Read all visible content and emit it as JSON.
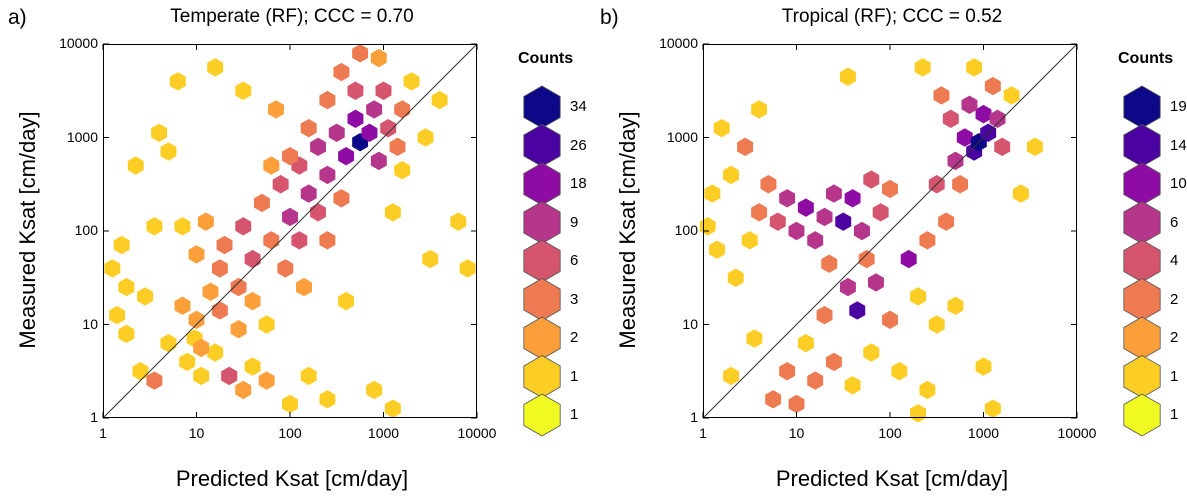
{
  "chart_data": [
    {
      "type": "hexbin",
      "panel_label": "a)",
      "title": "Temperate (RF); CCC = 0.70",
      "xlabel": "Predicted Ksat [cm/day]",
      "ylabel": "Measured Ksat [cm/day]",
      "x_scale": "log",
      "y_scale": "log",
      "xlim": [
        1,
        10000
      ],
      "ylim": [
        1,
        10000
      ],
      "x_ticks": [
        "1",
        "10",
        "100",
        "1000",
        "10000"
      ],
      "y_ticks": [
        "1",
        "10",
        "100",
        "1000",
        "10000"
      ],
      "reference_line": "1:1",
      "legend": {
        "title": "Counts",
        "labels": [
          "34",
          "26",
          "18",
          "9",
          "6",
          "3",
          "2",
          "1",
          "1"
        ],
        "colors": [
          "#0d0887",
          "#4a02a0",
          "#8e0ca4",
          "#b5368a",
          "#d5546e",
          "#ee7a51",
          "#fb9f3a",
          "#fcce25",
          "#f0f921"
        ]
      },
      "hexbins": [
        {
          "x": 0.9,
          "y": 0.6,
          "c": 1
        },
        {
          "x": 0.98,
          "y": 0.85,
          "c": 1
        },
        {
          "x": 1.2,
          "y": 0.7,
          "c": 1
        },
        {
          "x": 1.35,
          "y": 0.45,
          "c": 2
        },
        {
          "x": 1.5,
          "y": 0.3,
          "c": 2
        },
        {
          "x": 1.6,
          "y": 0.55,
          "c": 1
        },
        {
          "x": 1.75,
          "y": 0.4,
          "c": 2
        },
        {
          "x": 2.0,
          "y": 0.15,
          "c": 1
        },
        {
          "x": 2.2,
          "y": 0.45,
          "c": 1
        },
        {
          "x": 2.4,
          "y": 0.2,
          "c": 1
        },
        {
          "x": 2.9,
          "y": 0.3,
          "c": 1
        },
        {
          "x": 3.1,
          "y": 0.1,
          "c": 1
        },
        {
          "x": 2.6,
          "y": 1.25,
          "c": 1
        },
        {
          "x": 3.5,
          "y": 1.7,
          "c": 1
        },
        {
          "x": 3.2,
          "y": 2.65,
          "c": 1
        },
        {
          "x": 3.8,
          "y": 2.1,
          "c": 1
        },
        {
          "x": 3.9,
          "y": 1.6,
          "c": 1
        },
        {
          "x": 3.1,
          "y": 2.2,
          "c": 1
        },
        {
          "x": 0.2,
          "y": 1.85,
          "c": 1
        },
        {
          "x": 0.1,
          "y": 1.6,
          "c": 1
        },
        {
          "x": 0.25,
          "y": 1.4,
          "c": 1
        },
        {
          "x": 0.35,
          "y": 2.7,
          "c": 1
        },
        {
          "x": 0.55,
          "y": 2.05,
          "c": 1
        },
        {
          "x": 0.7,
          "y": 2.85,
          "c": 1
        },
        {
          "x": 0.8,
          "y": 3.6,
          "c": 1
        },
        {
          "x": 1.2,
          "y": 3.75,
          "c": 1
        },
        {
          "x": 1.5,
          "y": 3.5,
          "c": 1
        },
        {
          "x": 0.25,
          "y": 0.9,
          "c": 1
        },
        {
          "x": 0.4,
          "y": 0.5,
          "c": 1
        },
        {
          "x": 0.55,
          "y": 0.4,
          "c": 3
        },
        {
          "x": 0.7,
          "y": 0.8,
          "c": 1
        },
        {
          "x": 0.85,
          "y": 1.2,
          "c": 2
        },
        {
          "x": 1.0,
          "y": 1.05,
          "c": 2
        },
        {
          "x": 1.05,
          "y": 0.45,
          "c": 1
        },
        {
          "x": 1.15,
          "y": 1.35,
          "c": 2
        },
        {
          "x": 1.25,
          "y": 1.6,
          "c": 3
        },
        {
          "x": 1.0,
          "y": 1.75,
          "c": 2
        },
        {
          "x": 0.85,
          "y": 2.05,
          "c": 1
        },
        {
          "x": 1.1,
          "y": 2.1,
          "c": 2
        },
        {
          "x": 1.3,
          "y": 1.85,
          "c": 3
        },
        {
          "x": 1.45,
          "y": 1.4,
          "c": 4
        },
        {
          "x": 1.5,
          "y": 2.05,
          "c": 6
        },
        {
          "x": 1.6,
          "y": 1.7,
          "c": 7
        },
        {
          "x": 1.7,
          "y": 2.3,
          "c": 4
        },
        {
          "x": 1.8,
          "y": 1.9,
          "c": 5
        },
        {
          "x": 1.9,
          "y": 2.5,
          "c": 6
        },
        {
          "x": 2.0,
          "y": 2.15,
          "c": 9
        },
        {
          "x": 2.1,
          "y": 2.7,
          "c": 8
        },
        {
          "x": 2.2,
          "y": 2.4,
          "c": 12
        },
        {
          "x": 2.3,
          "y": 2.9,
          "c": 9
        },
        {
          "x": 2.4,
          "y": 2.6,
          "c": 14
        },
        {
          "x": 2.5,
          "y": 3.05,
          "c": 16
        },
        {
          "x": 2.6,
          "y": 2.8,
          "c": 20
        },
        {
          "x": 2.7,
          "y": 3.2,
          "c": 24
        },
        {
          "x": 2.75,
          "y": 2.95,
          "c": 34
        },
        {
          "x": 2.85,
          "y": 3.05,
          "c": 22
        },
        {
          "x": 2.9,
          "y": 3.3,
          "c": 15
        },
        {
          "x": 2.95,
          "y": 2.75,
          "c": 10
        },
        {
          "x": 3.05,
          "y": 3.1,
          "c": 8
        },
        {
          "x": 3.0,
          "y": 3.5,
          "c": 6
        },
        {
          "x": 3.15,
          "y": 2.9,
          "c": 5
        },
        {
          "x": 3.2,
          "y": 3.3,
          "c": 3
        },
        {
          "x": 2.4,
          "y": 3.4,
          "c": 4
        },
        {
          "x": 2.2,
          "y": 3.1,
          "c": 5
        },
        {
          "x": 2.0,
          "y": 2.8,
          "c": 3
        },
        {
          "x": 1.8,
          "y": 2.7,
          "c": 2
        },
        {
          "x": 2.55,
          "y": 3.7,
          "c": 3
        },
        {
          "x": 2.7,
          "y": 3.5,
          "c": 7
        },
        {
          "x": 2.1,
          "y": 1.9,
          "c": 6
        },
        {
          "x": 2.3,
          "y": 2.2,
          "c": 7
        },
        {
          "x": 1.95,
          "y": 1.6,
          "c": 3
        },
        {
          "x": 2.15,
          "y": 1.4,
          "c": 2
        },
        {
          "x": 2.4,
          "y": 1.9,
          "c": 3
        },
        {
          "x": 2.55,
          "y": 2.35,
          "c": 4
        },
        {
          "x": 1.05,
          "y": 0.75,
          "c": 2
        },
        {
          "x": 1.25,
          "y": 1.15,
          "c": 3
        },
        {
          "x": 1.6,
          "y": 1.25,
          "c": 2
        },
        {
          "x": 1.45,
          "y": 0.95,
          "c": 2
        },
        {
          "x": 1.35,
          "y": 0.45,
          "c": 6
        },
        {
          "x": 1.75,
          "y": 1.0,
          "c": 1
        },
        {
          "x": 2.95,
          "y": 3.85,
          "c": 2
        },
        {
          "x": 3.3,
          "y": 3.6,
          "c": 1
        },
        {
          "x": 3.45,
          "y": 3.0,
          "c": 1
        },
        {
          "x": 3.6,
          "y": 3.4,
          "c": 1
        },
        {
          "x": 0.6,
          "y": 3.05,
          "c": 1
        },
        {
          "x": 1.85,
          "y": 3.3,
          "c": 2
        },
        {
          "x": 2.75,
          "y": 3.9,
          "c": 4
        },
        {
          "x": 0.15,
          "y": 1.1,
          "c": 1
        },
        {
          "x": 0.45,
          "y": 1.3,
          "c": 1
        }
      ]
    },
    {
      "type": "hexbin",
      "panel_label": "b)",
      "title": "Tropical (RF); CCC = 0.52",
      "xlabel": "Predicted Ksat [cm/day]",
      "ylabel": "Measured Ksat [cm/day]",
      "x_scale": "log",
      "y_scale": "log",
      "xlim": [
        1,
        10000
      ],
      "ylim": [
        1,
        10000
      ],
      "x_ticks": [
        "1",
        "10",
        "100",
        "1000",
        "10000"
      ],
      "y_ticks": [
        "1",
        "10",
        "100",
        "1000",
        "10000"
      ],
      "reference_line": "1:1",
      "legend": {
        "title": "Counts",
        "labels": [
          "19",
          "14",
          "10",
          "6",
          "4",
          "2",
          "2",
          "1",
          "1"
        ],
        "colors": [
          "#0d0887",
          "#4a02a0",
          "#8e0ca4",
          "#b5368a",
          "#d5546e",
          "#ee7a51",
          "#fb9f3a",
          "#fcce25",
          "#f0f921"
        ]
      },
      "hexbins": [
        {
          "x": 0.05,
          "y": 2.05,
          "c": 1
        },
        {
          "x": 0.15,
          "y": 1.8,
          "c": 1
        },
        {
          "x": 0.1,
          "y": 2.4,
          "c": 1
        },
        {
          "x": 0.3,
          "y": 2.6,
          "c": 1
        },
        {
          "x": 0.2,
          "y": 3.1,
          "c": 1
        },
        {
          "x": 0.45,
          "y": 2.9,
          "c": 2
        },
        {
          "x": 0.35,
          "y": 1.5,
          "c": 1
        },
        {
          "x": 0.5,
          "y": 1.9,
          "c": 1
        },
        {
          "x": 0.6,
          "y": 2.2,
          "c": 2
        },
        {
          "x": 0.7,
          "y": 2.5,
          "c": 3
        },
        {
          "x": 0.8,
          "y": 2.1,
          "c": 4
        },
        {
          "x": 0.9,
          "y": 2.35,
          "c": 6
        },
        {
          "x": 1.0,
          "y": 2.0,
          "c": 8
        },
        {
          "x": 1.1,
          "y": 2.25,
          "c": 10
        },
        {
          "x": 1.2,
          "y": 1.9,
          "c": 7
        },
        {
          "x": 1.3,
          "y": 2.15,
          "c": 9
        },
        {
          "x": 1.4,
          "y": 2.4,
          "c": 6
        },
        {
          "x": 1.5,
          "y": 2.1,
          "c": 14
        },
        {
          "x": 1.6,
          "y": 2.35,
          "c": 10
        },
        {
          "x": 1.7,
          "y": 2.0,
          "c": 7
        },
        {
          "x": 1.8,
          "y": 2.55,
          "c": 5
        },
        {
          "x": 1.9,
          "y": 2.2,
          "c": 4
        },
        {
          "x": 2.0,
          "y": 2.45,
          "c": 3
        },
        {
          "x": 1.55,
          "y": 1.4,
          "c": 8
        },
        {
          "x": 1.65,
          "y": 1.15,
          "c": 14
        },
        {
          "x": 1.85,
          "y": 1.45,
          "c": 6
        },
        {
          "x": 2.2,
          "y": 1.7,
          "c": 12
        },
        {
          "x": 2.4,
          "y": 1.9,
          "c": 3
        },
        {
          "x": 2.6,
          "y": 2.1,
          "c": 2
        },
        {
          "x": 2.5,
          "y": 2.5,
          "c": 4
        },
        {
          "x": 2.7,
          "y": 2.75,
          "c": 6
        },
        {
          "x": 2.8,
          "y": 3.0,
          "c": 10
        },
        {
          "x": 2.9,
          "y": 2.85,
          "c": 14
        },
        {
          "x": 2.95,
          "y": 2.95,
          "c": 19
        },
        {
          "x": 3.05,
          "y": 3.05,
          "c": 14
        },
        {
          "x": 3.0,
          "y": 3.25,
          "c": 10
        },
        {
          "x": 2.85,
          "y": 3.35,
          "c": 6
        },
        {
          "x": 3.15,
          "y": 3.2,
          "c": 6
        },
        {
          "x": 3.2,
          "y": 2.9,
          "c": 4
        },
        {
          "x": 2.65,
          "y": 3.2,
          "c": 4
        },
        {
          "x": 2.55,
          "y": 3.45,
          "c": 2
        },
        {
          "x": 3.1,
          "y": 3.55,
          "c": 2
        },
        {
          "x": 2.9,
          "y": 3.75,
          "c": 1
        },
        {
          "x": 3.3,
          "y": 3.45,
          "c": 1
        },
        {
          "x": 2.75,
          "y": 2.5,
          "c": 2
        },
        {
          "x": 1.3,
          "y": 1.1,
          "c": 2
        },
        {
          "x": 1.1,
          "y": 0.8,
          "c": 1
        },
        {
          "x": 0.9,
          "y": 0.5,
          "c": 2
        },
        {
          "x": 0.75,
          "y": 0.2,
          "c": 2
        },
        {
          "x": 1.0,
          "y": 0.15,
          "c": 2
        },
        {
          "x": 1.2,
          "y": 0.4,
          "c": 3
        },
        {
          "x": 1.4,
          "y": 0.6,
          "c": 2
        },
        {
          "x": 1.6,
          "y": 0.35,
          "c": 1
        },
        {
          "x": 1.8,
          "y": 0.7,
          "c": 1
        },
        {
          "x": 2.1,
          "y": 0.5,
          "c": 1
        },
        {
          "x": 2.4,
          "y": 0.3,
          "c": 1
        },
        {
          "x": 2.3,
          "y": 0.05,
          "c": 1
        },
        {
          "x": 3.0,
          "y": 0.55,
          "c": 1
        },
        {
          "x": 3.1,
          "y": 0.1,
          "c": 1
        },
        {
          "x": 0.3,
          "y": 0.45,
          "c": 1
        },
        {
          "x": 0.55,
          "y": 0.85,
          "c": 1
        },
        {
          "x": 2.5,
          "y": 1.0,
          "c": 1
        },
        {
          "x": 2.7,
          "y": 1.2,
          "c": 1
        },
        {
          "x": 2.3,
          "y": 1.3,
          "c": 1
        },
        {
          "x": 1.55,
          "y": 3.65,
          "c": 1
        },
        {
          "x": 2.35,
          "y": 3.75,
          "c": 1
        },
        {
          "x": 0.6,
          "y": 3.3,
          "c": 1
        },
        {
          "x": 3.4,
          "y": 2.4,
          "c": 1
        },
        {
          "x": 3.55,
          "y": 2.9,
          "c": 1
        },
        {
          "x": 2.0,
          "y": 1.05,
          "c": 2
        },
        {
          "x": 1.35,
          "y": 1.65,
          "c": 3
        },
        {
          "x": 1.75,
          "y": 1.7,
          "c": 2
        }
      ]
    }
  ]
}
